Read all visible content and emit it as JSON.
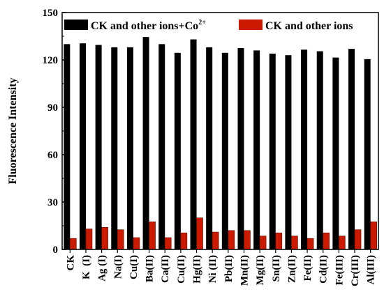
{
  "chart_data": {
    "type": "bar",
    "title": "",
    "xlabel": "",
    "ylabel": "Fluorescence Intensity",
    "ylim": [
      0,
      150
    ],
    "yticks": [
      0,
      30,
      60,
      90,
      120,
      150
    ],
    "grid": false,
    "legend_position": "top",
    "categories": [
      "CK",
      "K  (I)",
      "Ag (I)",
      "Na(I)",
      "Cu(I)",
      "Ba(II)",
      "Ca(II)",
      "Cu(II)",
      "Hg(II)",
      "Ni (II)",
      "Pb(II)",
      "Mn(II)",
      "Mg(II)",
      "Sn(II)",
      "Zn(II)",
      "Fe(II)",
      "Cd(II)",
      "Fe(III)",
      "Cr(III)",
      "Al(III)"
    ],
    "series": [
      {
        "name": "CK and other ions+Co",
        "name_sup": "2+",
        "color": "#000000",
        "values": [
          130,
          130.5,
          129.5,
          128,
          128,
          134.5,
          130,
          124.5,
          133,
          128,
          124.5,
          127.5,
          126,
          124,
          123,
          126.5,
          125.5,
          121.5,
          127,
          120.5
        ]
      },
      {
        "name": "CK and other ions",
        "color": "#cc1a00",
        "values": [
          7,
          13,
          14,
          12.5,
          7.5,
          17.5,
          7.5,
          10.5,
          20,
          11,
          12,
          12,
          8.5,
          10.5,
          8.5,
          7,
          10.5,
          8.5,
          12.5,
          17.5
        ]
      }
    ]
  }
}
